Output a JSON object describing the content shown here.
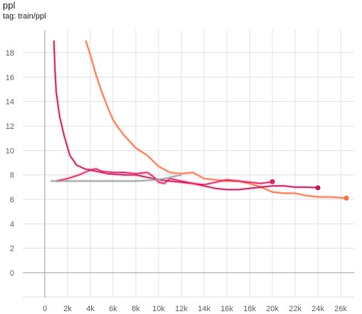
{
  "card": {
    "title": "ppl",
    "tag": "tag: train/ppl"
  },
  "chart_data": {
    "type": "line",
    "title": "ppl",
    "xlabel": "",
    "ylabel": "",
    "xlim": [
      -2000,
      27500
    ],
    "ylim": [
      -2,
      19
    ],
    "grid": true,
    "x_ticks": [
      0,
      2000,
      4000,
      6000,
      8000,
      10000,
      12000,
      14000,
      16000,
      18000,
      20000,
      22000,
      24000,
      26000
    ],
    "x_tick_labels": [
      "0",
      "2k",
      "4k",
      "6k",
      "8k",
      "10k",
      "12k",
      "14k",
      "16k",
      "18k",
      "20k",
      "22k",
      "24k",
      "26k"
    ],
    "y_ticks": [
      0,
      2,
      4,
      6,
      8,
      10,
      12,
      14,
      16,
      18
    ],
    "y_tick_labels": [
      "0",
      "2",
      "4",
      "6",
      "8",
      "10",
      "12",
      "14",
      "16",
      "18"
    ],
    "series": [
      {
        "color": "#ff7043",
        "end_marker": true,
        "points": [
          [
            3600,
            19
          ],
          [
            4000,
            17.8
          ],
          [
            4500,
            16.2
          ],
          [
            5000,
            14.8
          ],
          [
            5500,
            13.6
          ],
          [
            6000,
            12.5
          ],
          [
            6500,
            11.8
          ],
          [
            7000,
            11.2
          ],
          [
            8000,
            10.2
          ],
          [
            9000,
            9.6
          ],
          [
            10000,
            8.7
          ],
          [
            11000,
            8.2
          ],
          [
            12000,
            8.1
          ],
          [
            13000,
            8.2
          ],
          [
            14000,
            7.7
          ],
          [
            15000,
            7.6
          ],
          [
            16000,
            7.5
          ],
          [
            17000,
            7.5
          ],
          [
            18000,
            7.3
          ],
          [
            19000,
            7.0
          ],
          [
            20000,
            6.6
          ],
          [
            21000,
            6.5
          ],
          [
            22000,
            6.5
          ],
          [
            23000,
            6.3
          ],
          [
            24000,
            6.2
          ],
          [
            25000,
            6.2
          ],
          [
            26500,
            6.1
          ]
        ]
      },
      {
        "color": "#c2185b",
        "end_marker": true,
        "points": [
          [
            800,
            19
          ],
          [
            900,
            16.5
          ],
          [
            1000,
            14.8
          ],
          [
            1300,
            12.8
          ],
          [
            1700,
            11.2
          ],
          [
            2200,
            9.6
          ],
          [
            2800,
            8.8
          ],
          [
            3500,
            8.5
          ],
          [
            4500,
            8.3
          ],
          [
            5500,
            8.1
          ],
          [
            7000,
            8.0
          ],
          [
            8000,
            8.0
          ],
          [
            9000,
            7.8
          ],
          [
            10000,
            7.6
          ],
          [
            11000,
            7.5
          ],
          [
            12000,
            7.4
          ],
          [
            13000,
            7.3
          ],
          [
            14000,
            7.1
          ],
          [
            15000,
            6.9
          ],
          [
            16000,
            6.8
          ],
          [
            17000,
            6.8
          ],
          [
            18000,
            6.9
          ],
          [
            19000,
            7.0
          ],
          [
            20000,
            7.1
          ],
          [
            21000,
            7.1
          ],
          [
            22000,
            7.0
          ],
          [
            23000,
            7.0
          ],
          [
            24000,
            6.95
          ]
        ]
      },
      {
        "color": "#e91e63",
        "end_marker": true,
        "points": [
          [
            1000,
            7.5
          ],
          [
            2000,
            7.7
          ],
          [
            3000,
            8.0
          ],
          [
            4000,
            8.4
          ],
          [
            4500,
            8.5
          ],
          [
            5000,
            8.3
          ],
          [
            6000,
            8.2
          ],
          [
            7000,
            8.2
          ],
          [
            8000,
            8.1
          ],
          [
            9000,
            8.2
          ],
          [
            9500,
            7.9
          ],
          [
            10000,
            7.4
          ],
          [
            10500,
            7.3
          ],
          [
            11000,
            7.7
          ],
          [
            12000,
            7.5
          ],
          [
            13000,
            7.3
          ],
          [
            14000,
            7.2
          ],
          [
            15000,
            7.4
          ],
          [
            16000,
            7.6
          ],
          [
            17000,
            7.5
          ],
          [
            18000,
            7.4
          ],
          [
            19000,
            7.3
          ],
          [
            20000,
            7.45
          ]
        ]
      },
      {
        "color": "#9e9e9e",
        "end_marker": false,
        "points": [
          [
            500,
            7.5
          ],
          [
            2000,
            7.5
          ],
          [
            4000,
            7.5
          ],
          [
            6000,
            7.5
          ],
          [
            8000,
            7.5
          ],
          [
            10000,
            7.6
          ],
          [
            11000,
            7.8
          ],
          [
            12000,
            8.0
          ]
        ]
      }
    ]
  }
}
